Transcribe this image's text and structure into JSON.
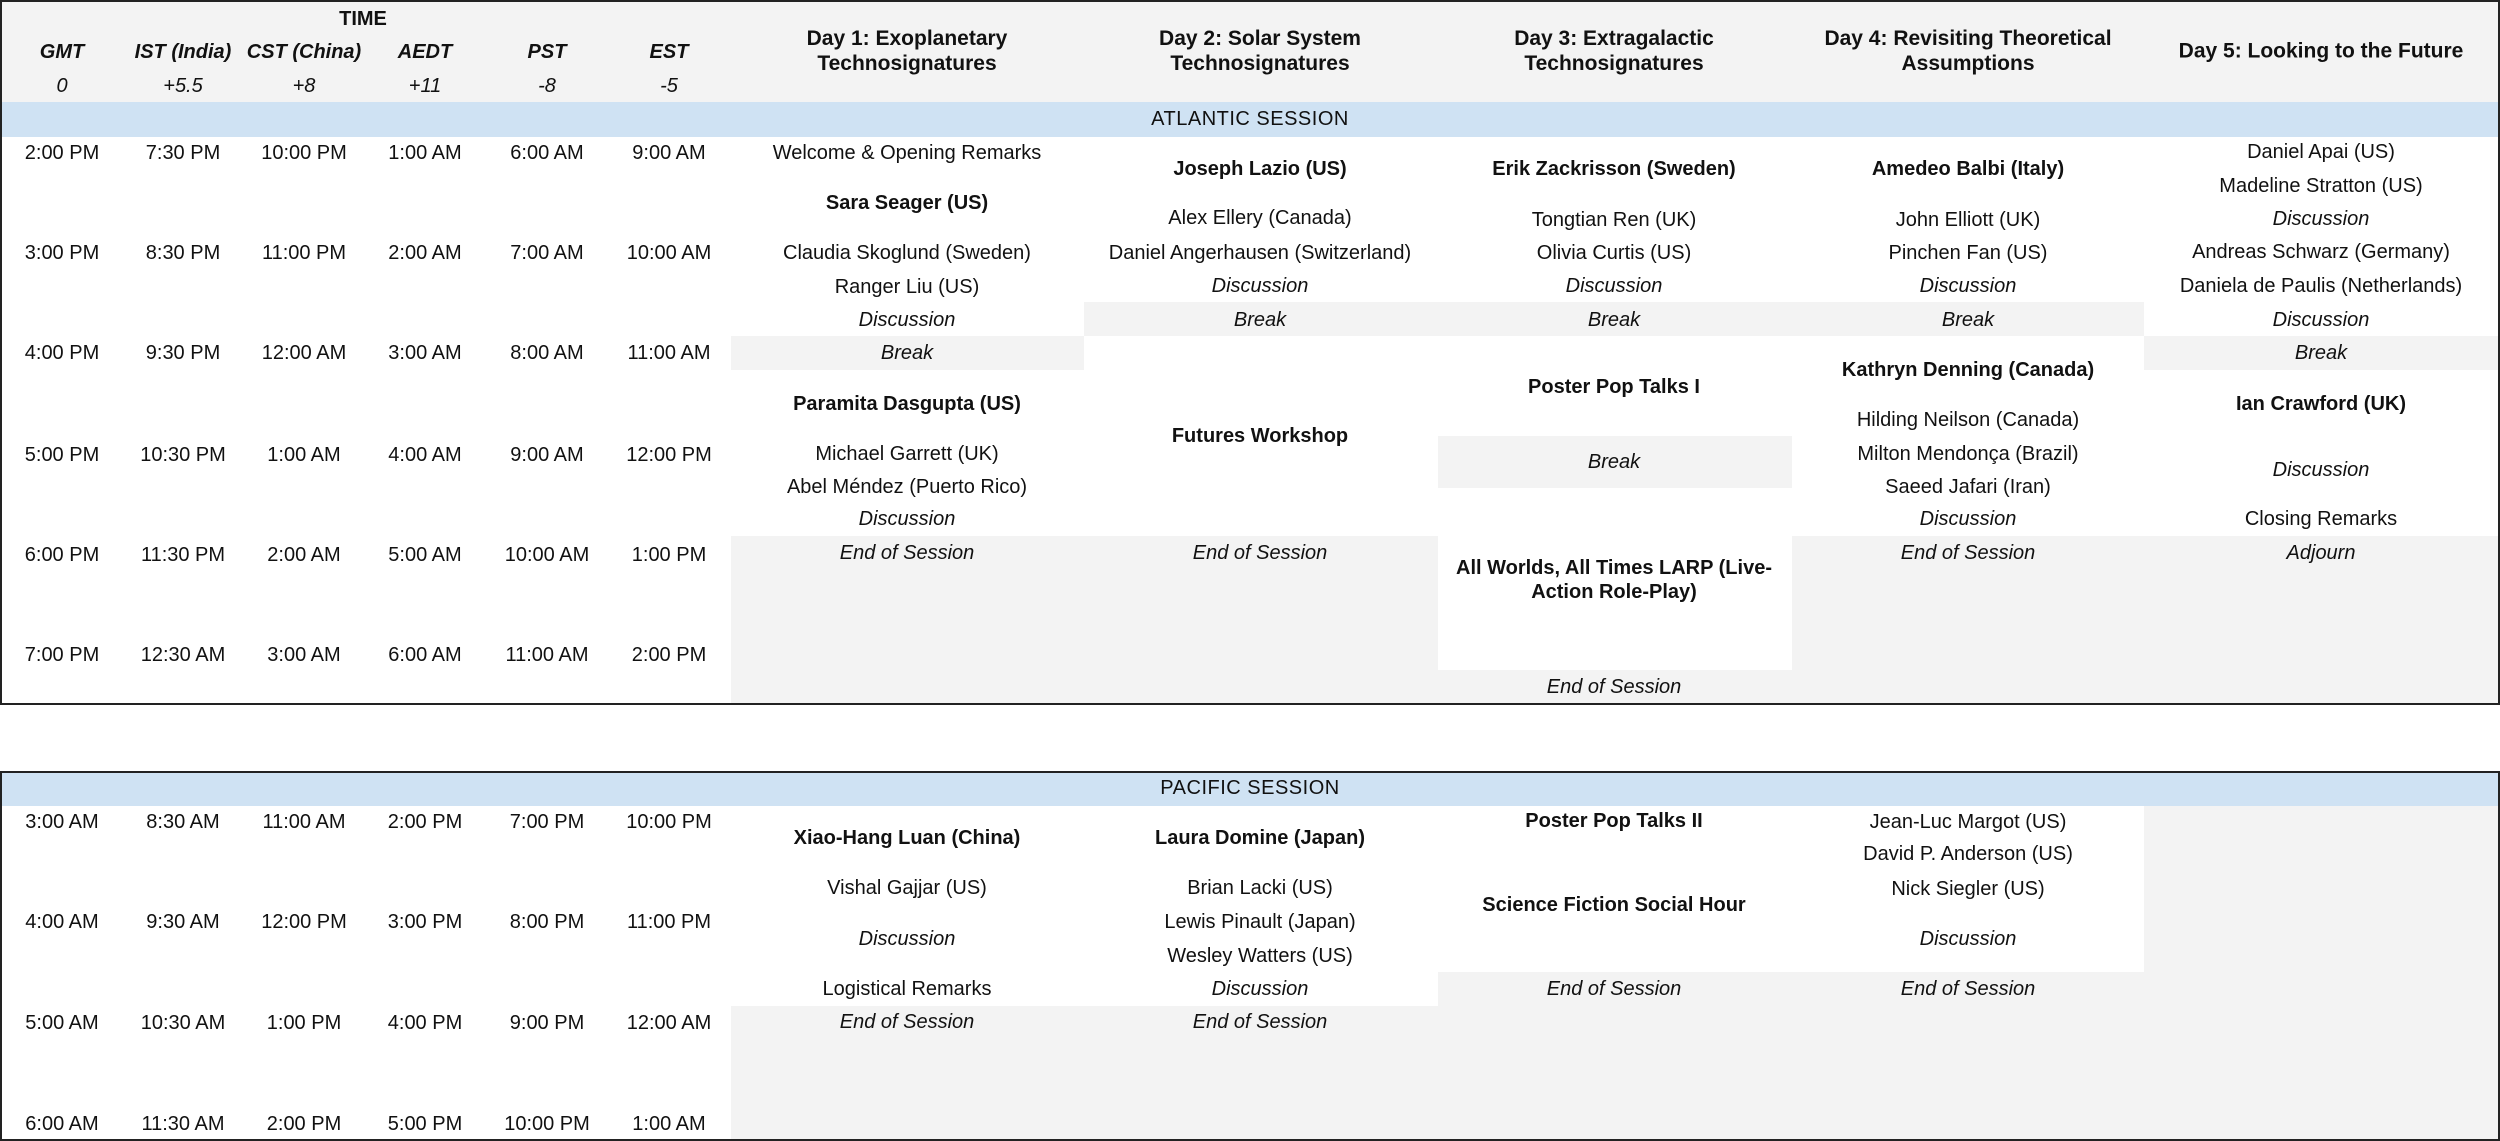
{
  "header": {
    "time_label": "TIME",
    "timezones": [
      {
        "name": "GMT",
        "offset": "0"
      },
      {
        "name": "IST (India)",
        "offset": "+5.5"
      },
      {
        "name": "CST (China)",
        "offset": "+8"
      },
      {
        "name": "AEDT",
        "offset": "+11"
      },
      {
        "name": "PST",
        "offset": "-8"
      },
      {
        "name": "EST",
        "offset": "-5"
      }
    ],
    "days": [
      "Day 1: Exoplanetary Technosignatures",
      "Day 2: Solar System Technosignatures",
      "Day 3: Extragalactic Technosignatures",
      "Day 4: Revisiting Theoretical Assumptions",
      "Day 5: Looking to the Future"
    ]
  },
  "atlantic": {
    "label": "ATLANTIC SESSION",
    "times": [
      [
        "2:00 PM",
        "7:30 PM",
        "10:00 PM",
        "1:00 AM",
        "6:00 AM",
        "9:00 AM"
      ],
      [
        "3:00 PM",
        "8:30 PM",
        "11:00 PM",
        "2:00 AM",
        "7:00 AM",
        "10:00 AM"
      ],
      [
        "4:00 PM",
        "9:30 PM",
        "12:00 AM",
        "3:00 AM",
        "8:00 AM",
        "11:00 AM"
      ],
      [
        "5:00 PM",
        "10:30 PM",
        "1:00 AM",
        "4:00 AM",
        "9:00 AM",
        "12:00 PM"
      ],
      [
        "6:00 PM",
        "11:30 PM",
        "2:00 AM",
        "5:00 AM",
        "10:00 AM",
        "1:00 PM"
      ],
      [
        "7:00 PM",
        "12:30 AM",
        "3:00 AM",
        "6:00 AM",
        "11:00 AM",
        "2:00 PM"
      ]
    ],
    "day1": {
      "welcome": "Welcome & Opening Remarks",
      "speaker1": "Sara Seager (US)",
      "talk1": "Claudia Skoglund (Sweden)",
      "talk2": "Ranger Liu (US)",
      "discussion1": "Discussion",
      "break": "Break",
      "speaker2": "Paramita Dasgupta (US)",
      "talk3": "Michael Garrett (UK)",
      "talk4": "Abel Méndez (Puerto Rico)",
      "discussion2": "Discussion",
      "end": "End of Session"
    },
    "day2": {
      "speaker1": "Joseph Lazio (US)",
      "talk1": "Alex Ellery (Canada)",
      "talk2": "Daniel Angerhausen (Switzerland)",
      "discussion1": "Discussion",
      "break": "Break",
      "workshop": "Futures Workshop",
      "end": "End of Session"
    },
    "day3": {
      "speaker1": "Erik Zackrisson (Sweden)",
      "talk1": "Tongtian Ren (UK)",
      "talk2": "Olivia Curtis (US)",
      "discussion1": "Discussion",
      "break1": "Break",
      "poster": "Poster Pop Talks I",
      "break2": "Break",
      "larp": "All Worlds, All Times LARP (Live-Action Role-Play)",
      "end": "End of Session"
    },
    "day4": {
      "speaker1": "Amedeo Balbi (Italy)",
      "talk1": "John Elliott (UK)",
      "talk2": "Pinchen Fan (US)",
      "discussion1": "Discussion",
      "break": "Break",
      "speaker2": "Kathryn Denning (Canada)",
      "talk3": "Hilding Neilson (Canada)",
      "talk4": "Milton Mendonça (Brazil)",
      "talk5": "Saeed Jafari (Iran)",
      "discussion2": "Discussion",
      "end": "End of Session"
    },
    "day5": {
      "talk1": "Daniel Apai (US)",
      "talk2": "Madeline Stratton (US)",
      "discussion1": "Discussion",
      "talk3": "Andreas Schwarz (Germany)",
      "talk4": "Daniela de Paulis (Netherlands)",
      "discussion2": "Discussion",
      "break": "Break",
      "speaker": "Ian Crawford (UK)",
      "discussion3": "Discussion",
      "closing": "Closing Remarks",
      "adjourn": "Adjourn"
    }
  },
  "pacific": {
    "label": "PACIFIC SESSION",
    "times": [
      [
        "3:00 AM",
        "8:30 AM",
        "11:00 AM",
        "2:00 PM",
        "7:00 PM",
        "10:00 PM"
      ],
      [
        "4:00 AM",
        "9:30 AM",
        "12:00 PM",
        "3:00 PM",
        "8:00 PM",
        "11:00 PM"
      ],
      [
        "5:00 AM",
        "10:30 AM",
        "1:00 PM",
        "4:00 PM",
        "9:00 PM",
        "12:00 AM"
      ],
      [
        "6:00 AM",
        "11:30 AM",
        "2:00 PM",
        "5:00 PM",
        "10:00 PM",
        "1:00 AM"
      ]
    ],
    "day1": {
      "speaker": "Xiao-Hang Luan (China)",
      "talk1": "Vishal Gajjar (US)",
      "discussion": "Discussion",
      "remarks": "Logistical Remarks",
      "end": "End of Session"
    },
    "day2": {
      "speaker": "Laura Domine (Japan)",
      "talk1": "Brian Lacki (US)",
      "talk2": "Lewis Pinault (Japan)",
      "talk3": "Wesley Watters (US)",
      "discussion": "Discussion",
      "end": "End of Session"
    },
    "day3": {
      "poster": "Poster Pop Talks II",
      "scifi": "Science Fiction Social Hour",
      "end": "End of Session"
    },
    "day4": {
      "talk1": "Jean-Luc Margot (US)",
      "talk2": "David P. Anderson (US)",
      "talk3": "Nick Siegler (US)",
      "discussion": "Discussion",
      "end": "End of Session"
    }
  },
  "colors": {
    "session_band": "#cfe2f3",
    "gray_fill": "#f3f3f3",
    "border": "#222222"
  }
}
